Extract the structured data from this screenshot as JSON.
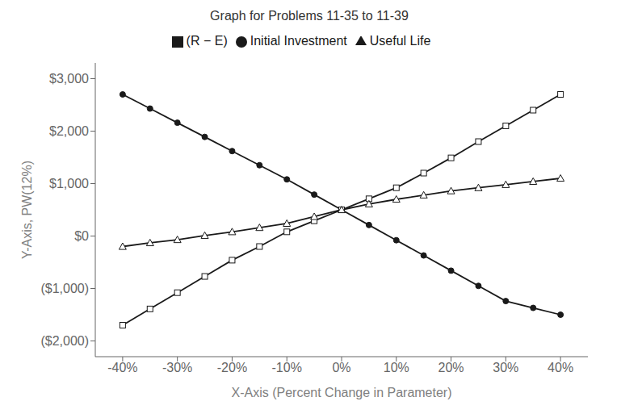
{
  "chart_data": {
    "type": "line",
    "title": "Graph for Problems 11-35 to 11-39",
    "x_label": "X-Axis (Percent Change in Parameter)",
    "y_label": "Y-Axis, PW(12%)",
    "x": [
      -0.4,
      -0.35,
      -0.3,
      -0.25,
      -0.2,
      -0.15,
      -0.1,
      -0.05,
      0.0,
      0.05,
      0.1,
      0.15,
      0.2,
      0.25,
      0.3,
      0.35,
      0.4
    ],
    "series": [
      {
        "name": "Initial Investment",
        "color": "#1a1a1a",
        "marker": "circle",
        "values": [
          2700,
          2430,
          2160,
          1890,
          1620,
          1350,
          1080,
          790,
          500,
          210,
          -80,
          -370,
          -660,
          -950,
          -1240,
          -1370,
          -1500
        ]
      },
      {
        "name": "(R − E)",
        "color": "#1a1a1a",
        "marker": "square",
        "values": [
          -1700,
          -1390,
          -1080,
          -770,
          -460,
          -200,
          80,
          290,
          500,
          710,
          920,
          1200,
          1490,
          1800,
          2100,
          2400,
          2700
        ]
      },
      {
        "name": "Useful Life",
        "color": "#1a1a1a",
        "marker": "triangle",
        "values": [
          -200,
          -130,
          -70,
          10,
          80,
          160,
          240,
          370,
          500,
          610,
          700,
          780,
          860,
          920,
          980,
          1040,
          1100
        ]
      }
    ],
    "xlim": [
      -0.45,
      0.45
    ],
    "xticks": [
      {
        "value": -0.4,
        "label": "-40%"
      },
      {
        "value": -0.3,
        "label": "-30%"
      },
      {
        "value": -0.2,
        "label": "-20%"
      },
      {
        "value": -0.1,
        "label": "-10%"
      },
      {
        "value": 0.0,
        "label": "0%"
      },
      {
        "value": 0.1,
        "label": "10%"
      },
      {
        "value": 0.2,
        "label": "20%"
      },
      {
        "value": 0.3,
        "label": "30%"
      },
      {
        "value": 0.4,
        "label": "40%"
      }
    ],
    "ylim": [
      -2300,
      3300
    ],
    "yticks": [
      {
        "value": -2000,
        "label": "($2,000)"
      },
      {
        "value": -1000,
        "label": "($1,000)"
      },
      {
        "value": 0,
        "label": "$0"
      },
      {
        "value": 1000,
        "label": "$1,000"
      },
      {
        "value": 2000,
        "label": "$2,000"
      },
      {
        "value": 3000,
        "label": "$3,000"
      }
    ],
    "grid": false,
    "legend": "top"
  }
}
